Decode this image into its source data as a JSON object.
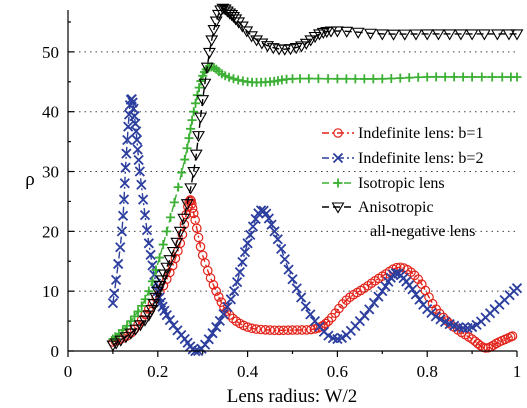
{
  "chart_data": {
    "type": "line",
    "title": "",
    "xlabel": "Lens radius: W/2",
    "ylabel": "ρ",
    "xlim": [
      0,
      1
    ],
    "ylim": [
      0,
      57
    ],
    "x_ticks": [
      "0",
      "0.2",
      "0.4",
      "0.6",
      "0.8",
      "1"
    ],
    "y_ticks": [
      "0",
      "10",
      "20",
      "30",
      "40",
      "50"
    ],
    "grid": "horizontal dotted",
    "legend_position": "right",
    "series": [
      {
        "name": "Indefinite lens: b=1",
        "color": "#e2231a",
        "marker": "circle",
        "line": "dash-dot",
        "points": [
          [
            0.1,
            1.5
          ],
          [
            0.14,
            3
          ],
          [
            0.18,
            7
          ],
          [
            0.22,
            12
          ],
          [
            0.25,
            18
          ],
          [
            0.27,
            25
          ],
          [
            0.28,
            23
          ],
          [
            0.3,
            16
          ],
          [
            0.33,
            10
          ],
          [
            0.36,
            6
          ],
          [
            0.4,
            4
          ],
          [
            0.45,
            3.5
          ],
          [
            0.5,
            3.5
          ],
          [
            0.55,
            3.7
          ],
          [
            0.58,
            5
          ],
          [
            0.62,
            8.5
          ],
          [
            0.66,
            10.5
          ],
          [
            0.7,
            12.5
          ],
          [
            0.74,
            14
          ],
          [
            0.78,
            12
          ],
          [
            0.82,
            7
          ],
          [
            0.86,
            4
          ],
          [
            0.9,
            2
          ],
          [
            0.93,
            0.5
          ],
          [
            0.96,
            1.5
          ],
          [
            0.99,
            2.5
          ]
        ]
      },
      {
        "name": "Indefinite lens: b=2",
        "color": "#2c3e9e",
        "marker": "x",
        "line": "dash-dot",
        "points": [
          [
            0.1,
            8
          ],
          [
            0.12,
            20
          ],
          [
            0.13,
            33
          ],
          [
            0.14,
            42
          ],
          [
            0.15,
            38
          ],
          [
            0.16,
            30
          ],
          [
            0.18,
            18
          ],
          [
            0.2,
            10
          ],
          [
            0.22,
            6
          ],
          [
            0.26,
            2
          ],
          [
            0.29,
            0
          ],
          [
            0.33,
            4
          ],
          [
            0.37,
            10
          ],
          [
            0.4,
            18
          ],
          [
            0.43,
            23.5
          ],
          [
            0.46,
            20
          ],
          [
            0.5,
            12
          ],
          [
            0.55,
            5
          ],
          [
            0.6,
            2
          ],
          [
            0.65,
            5
          ],
          [
            0.7,
            10
          ],
          [
            0.73,
            13
          ],
          [
            0.76,
            11
          ],
          [
            0.8,
            7
          ],
          [
            0.85,
            4.5
          ],
          [
            0.9,
            4
          ],
          [
            0.95,
            7
          ],
          [
            1.0,
            10.5
          ]
        ]
      },
      {
        "name": "Isotropic lens",
        "color": "#3cb034",
        "marker": "plus",
        "line": "dash",
        "points": [
          [
            0.1,
            2
          ],
          [
            0.14,
            5
          ],
          [
            0.18,
            10
          ],
          [
            0.22,
            20
          ],
          [
            0.26,
            32
          ],
          [
            0.28,
            40
          ],
          [
            0.3,
            46
          ],
          [
            0.32,
            47.5
          ],
          [
            0.35,
            46
          ],
          [
            0.4,
            45
          ],
          [
            0.45,
            45
          ],
          [
            0.5,
            45.5
          ],
          [
            0.6,
            45.5
          ],
          [
            0.7,
            45.5
          ],
          [
            0.8,
            45.8
          ],
          [
            0.9,
            45.8
          ],
          [
            1.0,
            45.8
          ]
        ]
      },
      {
        "name": "Anisotropic\nall-negative lens",
        "color": "#000000",
        "marker": "triangle-down",
        "line": "dash",
        "points": [
          [
            0.1,
            1
          ],
          [
            0.14,
            3
          ],
          [
            0.18,
            6
          ],
          [
            0.2,
            10
          ],
          [
            0.22,
            14
          ],
          [
            0.25,
            20
          ],
          [
            0.28,
            30
          ],
          [
            0.3,
            42
          ],
          [
            0.32,
            52
          ],
          [
            0.34,
            57
          ],
          [
            0.36,
            56.5
          ],
          [
            0.38,
            55
          ],
          [
            0.42,
            52
          ],
          [
            0.47,
            50.5
          ],
          [
            0.52,
            51
          ],
          [
            0.56,
            53
          ],
          [
            0.6,
            53.5
          ],
          [
            0.7,
            53
          ],
          [
            0.8,
            53
          ],
          [
            0.9,
            53
          ],
          [
            1.0,
            53
          ]
        ]
      }
    ]
  }
}
